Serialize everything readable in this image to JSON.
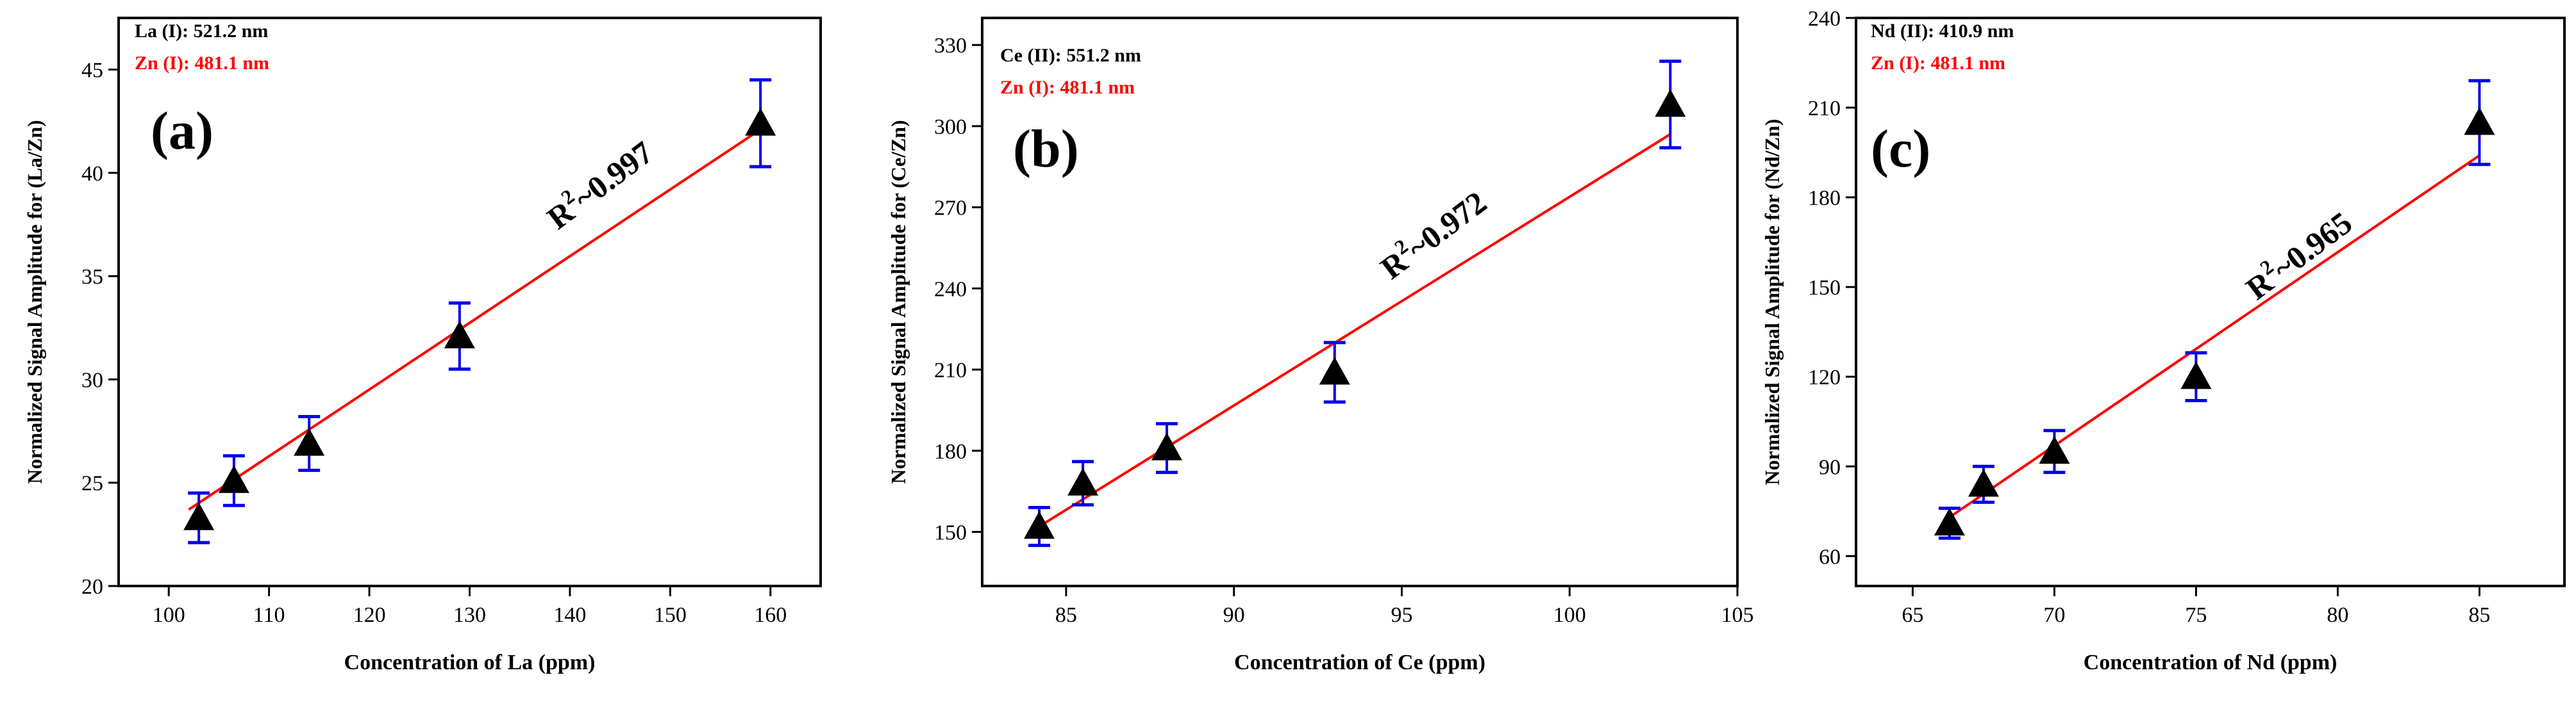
{
  "chart_data": [
    {
      "type": "scatter",
      "panel_label": "(a)",
      "legend": [
        {
          "label": "La (I): 521.2 nm",
          "color": "#000000"
        },
        {
          "label": "Zn (I): 481.1 nm",
          "color": "#ff0000"
        }
      ],
      "annotation": {
        "r2_text": "R",
        "r2_sup": "2",
        "r2_value": "~0.997"
      },
      "xlabel": "Concentration of La (ppm)",
      "ylabel": "Normalized Signal Amplitude for (La/Zn)",
      "xlim": [
        95,
        165
      ],
      "ylim": [
        20,
        47.5
      ],
      "xticks": [
        100,
        110,
        120,
        130,
        140,
        150,
        160
      ],
      "xtick_labels": [
        "100",
        "110",
        "120",
        "130",
        "140",
        "150",
        "160"
      ],
      "yticks": [
        20,
        25,
        30,
        35,
        40,
        45
      ],
      "ytick_labels": [
        "20",
        "25",
        "30",
        "35",
        "40",
        "45"
      ],
      "x": [
        103,
        106.5,
        114,
        129,
        159
      ],
      "y": [
        23.3,
        25.1,
        26.9,
        32.1,
        42.4
      ],
      "yerr": [
        1.2,
        1.2,
        1.3,
        1.6,
        2.1
      ],
      "fit": {
        "x": [
          102,
          159
        ],
        "y": [
          23.7,
          42.1
        ]
      },
      "colors": {
        "marker": "#000000",
        "error": "#0000ee",
        "fit": "#ff0000"
      }
    },
    {
      "type": "scatter",
      "panel_label": "(b)",
      "legend": [
        {
          "label": "Ce (II): 551.2 nm",
          "color": "#000000"
        },
        {
          "label": "Zn (I): 481.1 nm",
          "color": "#ff0000"
        }
      ],
      "annotation": {
        "r2_text": "R",
        "r2_sup": "2",
        "r2_value": "~0.972"
      },
      "xlabel": "Concentration of Ce (ppm)",
      "ylabel": "Normalized Signal Amplitude for (Ce/Zn)",
      "xlim": [
        82.5,
        105
      ],
      "ylim": [
        130,
        340
      ],
      "xticks": [
        85,
        90,
        95,
        100,
        105
      ],
      "xtick_labels": [
        "85",
        "90",
        "95",
        "100",
        "105"
      ],
      "yticks": [
        150,
        180,
        210,
        240,
        270,
        300,
        330
      ],
      "ytick_labels": [
        "150",
        "180",
        "210",
        "240",
        "270",
        "300",
        "330"
      ],
      "x": [
        84.2,
        85.5,
        88,
        93,
        103
      ],
      "y": [
        152,
        168,
        181,
        209,
        308
      ],
      "yerr": [
        7,
        8,
        9,
        11,
        16
      ],
      "fit": {
        "x": [
          84.2,
          103
        ],
        "y": [
          152,
          297
        ]
      },
      "colors": {
        "marker": "#000000",
        "error": "#0000ee",
        "fit": "#ff0000"
      }
    },
    {
      "type": "scatter",
      "panel_label": "(c)",
      "legend": [
        {
          "label": "Nd (II): 410.9 nm",
          "color": "#000000"
        },
        {
          "label": "Zn (I): 481.1 nm",
          "color": "#ff0000"
        }
      ],
      "annotation": {
        "r2_text": "R",
        "r2_sup": "2",
        "r2_value": "~0.965"
      },
      "xlabel": "Concentration of Nd (ppm)",
      "ylabel": "Normalized Signal Amplitude for (Nd/Zn)",
      "xlim": [
        63,
        88
      ],
      "ylim": [
        50,
        240
      ],
      "xticks": [
        65,
        70,
        75,
        80,
        85
      ],
      "xtick_labels": [
        "65",
        "70",
        "75",
        "80",
        "85"
      ],
      "yticks": [
        60,
        90,
        120,
        150,
        180,
        210,
        240
      ],
      "ytick_labels": [
        "60",
        "90",
        "120",
        "150",
        "180",
        "210",
        "240"
      ],
      "x": [
        66.3,
        67.5,
        70,
        75,
        85
      ],
      "y": [
        71,
        84,
        95,
        120,
        205
      ],
      "yerr": [
        5,
        6,
        7,
        8,
        14
      ],
      "fit": {
        "x": [
          66.3,
          85
        ],
        "y": [
          73,
          194
        ]
      },
      "colors": {
        "marker": "#000000",
        "error": "#0000ee",
        "fit": "#ff0000"
      }
    }
  ]
}
